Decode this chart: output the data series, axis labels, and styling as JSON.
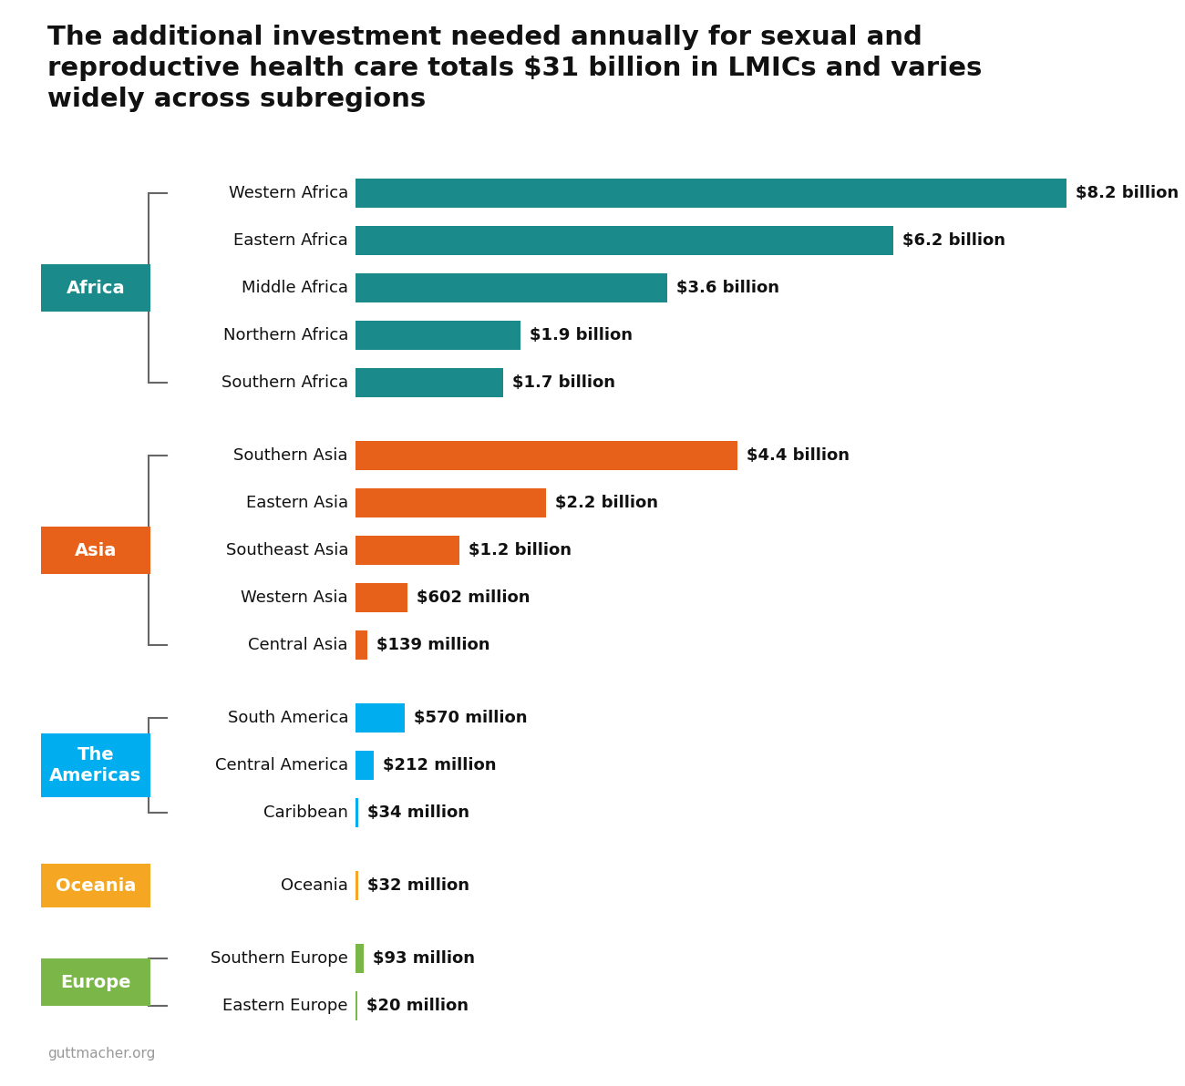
{
  "title_line1": "The additional investment needed annually for sexual and",
  "title_line2": "reproductive health care totals $31 billion in LMICs and varies",
  "title_line3": "widely across subregions",
  "regions": [
    {
      "label": "Africa",
      "color": "#1A8A8A",
      "subregions": [
        {
          "name": "Western Africa",
          "value": 8200,
          "label": "$8.2 billion"
        },
        {
          "name": "Eastern Africa",
          "value": 6200,
          "label": "$6.2 billion"
        },
        {
          "name": "Middle Africa",
          "value": 3600,
          "label": "$3.6 billion"
        },
        {
          "name": "Northern Africa",
          "value": 1900,
          "label": "$1.9 billion"
        },
        {
          "name": "Southern Africa",
          "value": 1700,
          "label": "$1.7 billion"
        }
      ]
    },
    {
      "label": "Asia",
      "color": "#E8611A",
      "subregions": [
        {
          "name": "Southern Asia",
          "value": 4400,
          "label": "$4.4 billion"
        },
        {
          "name": "Eastern Asia",
          "value": 2200,
          "label": "$2.2 billion"
        },
        {
          "name": "Southeast Asia",
          "value": 1200,
          "label": "$1.2 billion"
        },
        {
          "name": "Western Asia",
          "value": 602,
          "label": "$602 million"
        },
        {
          "name": "Central Asia",
          "value": 139,
          "label": "$139 million"
        }
      ]
    },
    {
      "label": "The\nAmericas",
      "color": "#00AEEF",
      "subregions": [
        {
          "name": "South America",
          "value": 570,
          "label": "$570 million"
        },
        {
          "name": "Central America",
          "value": 212,
          "label": "$212 million"
        },
        {
          "name": "Caribbean",
          "value": 34,
          "label": "$34 million"
        }
      ]
    },
    {
      "label": "Oceania",
      "color": "#F5A623",
      "subregions": [
        {
          "name": "Oceania",
          "value": 32,
          "label": "$32 million"
        }
      ]
    },
    {
      "label": "Europe",
      "color": "#7AB648",
      "subregions": [
        {
          "name": "Southern Europe",
          "value": 93,
          "label": "$93 million"
        },
        {
          "name": "Eastern Europe",
          "value": 20,
          "label": "$20 million"
        }
      ]
    }
  ],
  "max_value": 8200,
  "background_color": "#ffffff",
  "footnote": "guttmacher.org"
}
